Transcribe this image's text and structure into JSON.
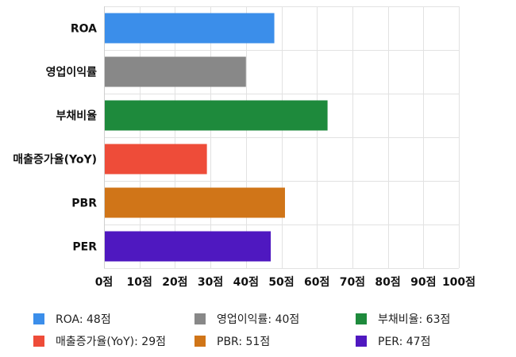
{
  "chart_data": {
    "type": "bar",
    "orientation": "horizontal",
    "categories": [
      "ROA",
      "영업이익률",
      "부채비율",
      "매출증가율(YoY)",
      "PBR",
      "PER"
    ],
    "values": [
      48,
      40,
      63,
      29,
      51,
      47
    ],
    "colors": [
      "#3b8eea",
      "#888888",
      "#1e8a3c",
      "#ee4c39",
      "#d07518",
      "#4f18c0"
    ],
    "xlim": [
      0,
      100
    ],
    "xticks": [
      0,
      10,
      20,
      30,
      40,
      50,
      60,
      70,
      80,
      90,
      100
    ],
    "xtick_labels": [
      "0점",
      "10점",
      "20점",
      "30점",
      "40점",
      "50점",
      "60점",
      "70점",
      "80점",
      "90점",
      "100점"
    ],
    "grid": true,
    "legend_position": "bottom",
    "legend": [
      {
        "label": "ROA: 48점",
        "color": "#3b8eea"
      },
      {
        "label": "영업이익률: 40점",
        "color": "#888888"
      },
      {
        "label": "부채비율: 63점",
        "color": "#1e8a3c"
      },
      {
        "label": "매출증가율(YoY): 29점",
        "color": "#ee4c39"
      },
      {
        "label": "PBR: 51점",
        "color": "#d07518"
      },
      {
        "label": "PER: 47점",
        "color": "#4f18c0"
      }
    ]
  }
}
